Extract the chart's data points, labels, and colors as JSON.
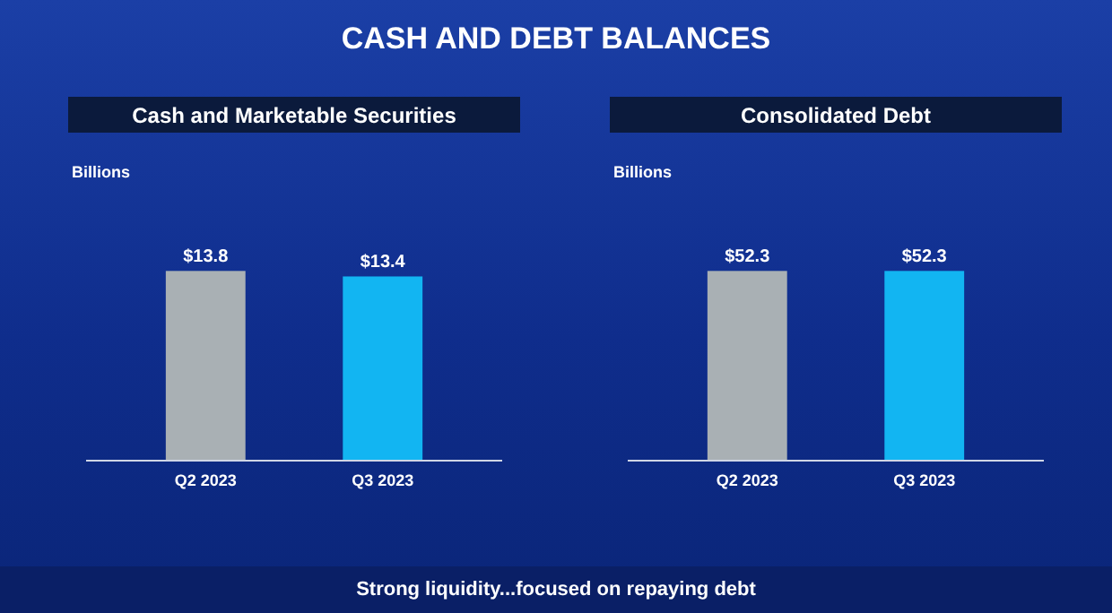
{
  "chart_data": [
    {
      "type": "bar",
      "title": "Cash and Marketable Securities",
      "ylabel": "Billions",
      "categories": [
        "Q2 2023",
        "Q3 2023"
      ],
      "values": [
        13.8,
        13.4
      ],
      "colors": [
        "#a9b0b4",
        "#12b5f2"
      ],
      "data_labels": true,
      "value_labels": [
        "$13.8",
        "$13.4"
      ]
    },
    {
      "type": "bar",
      "title": "Consolidated Debt",
      "ylabel": "Billions",
      "categories": [
        "Q2 2023",
        "Q3 2023"
      ],
      "values": [
        52.3,
        52.3
      ],
      "colors": [
        "#a9b0b4",
        "#12b5f2"
      ],
      "data_labels": true,
      "value_labels": [
        "$52.3",
        "$52.3"
      ]
    },
    {
      "type": "other",
      "title": "CASH AND DEBT BALANCES",
      "annotations": [
        "Strong liquidity...focused on repaying debt"
      ]
    }
  ]
}
